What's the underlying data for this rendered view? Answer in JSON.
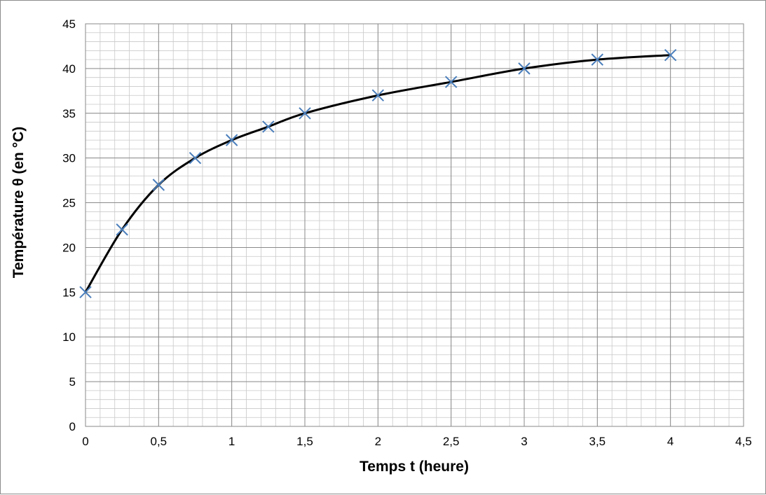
{
  "chart_data": {
    "type": "line",
    "title": "",
    "xlabel": "Temps t (heure)",
    "ylabel": "Température θ (en °C)",
    "xlim": [
      0,
      4.5
    ],
    "ylim": [
      0,
      45
    ],
    "x_major_step": 0.5,
    "y_major_step": 5,
    "x_minor_step": 0.1,
    "y_minor_step": 1,
    "grid": true,
    "legend": "none",
    "x_tick_labels": [
      "0",
      "0,5",
      "1",
      "1,5",
      "2",
      "2,5",
      "3",
      "3,5",
      "4",
      "4,5"
    ],
    "y_tick_labels": [
      "0",
      "5",
      "10",
      "15",
      "20",
      "25",
      "30",
      "35",
      "40",
      "45"
    ],
    "series": [
      {
        "x": [
          0,
          0.25,
          0.5,
          0.75,
          1,
          1.25,
          1.5,
          2,
          2.5,
          3,
          3.5,
          4
        ],
        "y": [
          15,
          22,
          27,
          30,
          32,
          33.5,
          35,
          37,
          38.5,
          40,
          41,
          41.5
        ],
        "line_color": "#000000",
        "marker": "x",
        "marker_color": "#4a7ebb"
      }
    ]
  }
}
